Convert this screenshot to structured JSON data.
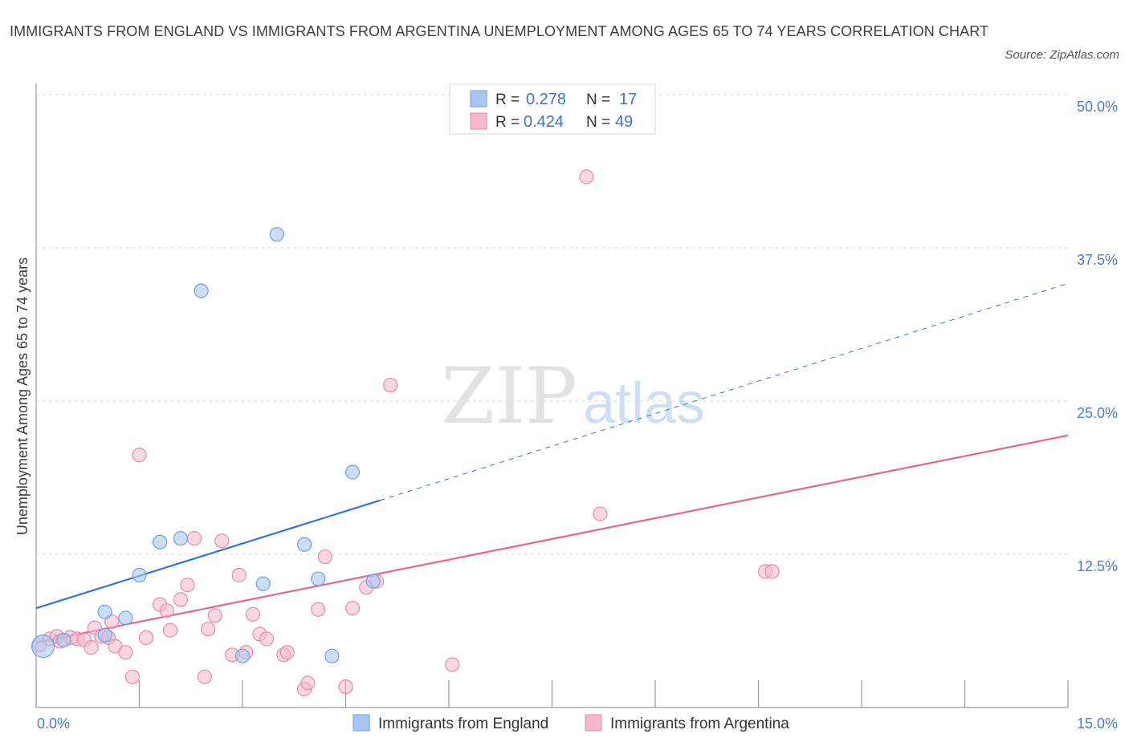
{
  "title": "IMMIGRANTS FROM ENGLAND VS IMMIGRANTS FROM ARGENTINA UNEMPLOYMENT AMONG AGES 65 TO 74 YEARS CORRELATION CHART",
  "source": "Source: ZipAtlas.com",
  "colors": {
    "england_fill": "#aac6f0",
    "england_stroke": "#6f9fdc",
    "england_line": "#3575d1",
    "argentina_fill": "#f6b8cc",
    "argentina_stroke": "#e98aa9",
    "argentina_line": "#e0668f",
    "grid": "#d9d9d9",
    "tick_label": "#4a7cc9"
  },
  "legend": {
    "rows": [
      {
        "r_label": "R =",
        "r_value": "0.278",
        "n_label": "N =",
        "n_value": "17"
      },
      {
        "r_label": "R =",
        "r_value": "0.424",
        "n_label": "N =",
        "n_value": "49"
      }
    ]
  },
  "watermark": {
    "zip": "ZIP",
    "atlas": "atlas"
  },
  "chart_data": {
    "type": "scatter",
    "title": "IMMIGRANTS FROM ENGLAND VS IMMIGRANTS FROM ARGENTINA UNEMPLOYMENT AMONG AGES 65 TO 74 YEARS CORRELATION CHART",
    "xlabel": "",
    "ylabel": "Unemployment Among Ages 65 to 74 years",
    "xlim": [
      0,
      15
    ],
    "ylim": [
      0,
      50
    ],
    "x_tick_labels": [
      "0.0%",
      "15.0%"
    ],
    "y_ticks": [
      12.5,
      25.0,
      37.5,
      50.0
    ],
    "y_tick_labels": [
      "12.5%",
      "25.0%",
      "37.5%",
      "50.0%"
    ],
    "grid": true,
    "legend_position": "top-center",
    "series": [
      {
        "name": "Immigrants from England",
        "R": 0.278,
        "N": 17,
        "points": [
          {
            "x": 0.1,
            "y": 5.0,
            "big": true
          },
          {
            "x": 0.4,
            "y": 5.5
          },
          {
            "x": 1.0,
            "y": 5.9
          },
          {
            "x": 1.0,
            "y": 7.8
          },
          {
            "x": 1.3,
            "y": 7.3
          },
          {
            "x": 1.5,
            "y": 10.8
          },
          {
            "x": 1.8,
            "y": 13.5
          },
          {
            "x": 2.1,
            "y": 13.8
          },
          {
            "x": 2.4,
            "y": 34.0
          },
          {
            "x": 3.0,
            "y": 4.2
          },
          {
            "x": 3.3,
            "y": 10.1
          },
          {
            "x": 3.5,
            "y": 38.6
          },
          {
            "x": 3.9,
            "y": 13.3
          },
          {
            "x": 4.1,
            "y": 10.5
          },
          {
            "x": 4.3,
            "y": 4.2
          },
          {
            "x": 4.6,
            "y": 19.2
          },
          {
            "x": 4.9,
            "y": 10.3
          }
        ],
        "trend": {
          "x0": 0,
          "y0": 8.1,
          "x1": 5.0,
          "y1": 16.9,
          "dash_to_x": 15,
          "dash_to_y": 34.6
        }
      },
      {
        "name": "Immigrants from Argentina",
        "R": 0.424,
        "N": 49,
        "points": [
          {
            "x": 0.05,
            "y": 5.1
          },
          {
            "x": 0.2,
            "y": 5.6
          },
          {
            "x": 0.3,
            "y": 5.8
          },
          {
            "x": 0.5,
            "y": 5.7
          },
          {
            "x": 0.6,
            "y": 5.6
          },
          {
            "x": 0.7,
            "y": 5.5
          },
          {
            "x": 0.8,
            "y": 4.9
          },
          {
            "x": 0.85,
            "y": 6.5
          },
          {
            "x": 0.95,
            "y": 5.8
          },
          {
            "x": 1.05,
            "y": 5.7
          },
          {
            "x": 1.1,
            "y": 7.0
          },
          {
            "x": 1.15,
            "y": 5.0
          },
          {
            "x": 1.3,
            "y": 4.5
          },
          {
            "x": 1.4,
            "y": 2.5
          },
          {
            "x": 1.5,
            "y": 20.6
          },
          {
            "x": 1.6,
            "y": 5.7
          },
          {
            "x": 1.8,
            "y": 8.4
          },
          {
            "x": 1.9,
            "y": 7.9
          },
          {
            "x": 1.95,
            "y": 6.3
          },
          {
            "x": 2.1,
            "y": 8.8
          },
          {
            "x": 2.2,
            "y": 10.0
          },
          {
            "x": 2.3,
            "y": 13.8
          },
          {
            "x": 2.45,
            "y": 2.5
          },
          {
            "x": 2.5,
            "y": 6.4
          },
          {
            "x": 2.6,
            "y": 7.5
          },
          {
            "x": 2.7,
            "y": 13.6
          },
          {
            "x": 2.85,
            "y": 4.3
          },
          {
            "x": 2.95,
            "y": 10.8
          },
          {
            "x": 3.05,
            "y": 4.5
          },
          {
            "x": 3.15,
            "y": 7.6
          },
          {
            "x": 3.25,
            "y": 6.0
          },
          {
            "x": 3.35,
            "y": 5.6
          },
          {
            "x": 3.6,
            "y": 4.3
          },
          {
            "x": 3.65,
            "y": 4.5
          },
          {
            "x": 3.9,
            "y": 1.5
          },
          {
            "x": 3.95,
            "y": 2.0
          },
          {
            "x": 4.1,
            "y": 8.0
          },
          {
            "x": 4.2,
            "y": 12.3
          },
          {
            "x": 4.5,
            "y": 1.7
          },
          {
            "x": 4.6,
            "y": 8.1
          },
          {
            "x": 4.8,
            "y": 9.8
          },
          {
            "x": 4.95,
            "y": 10.3
          },
          {
            "x": 5.15,
            "y": 26.3
          },
          {
            "x": 6.05,
            "y": 3.5
          },
          {
            "x": 8.0,
            "y": 43.3
          },
          {
            "x": 8.2,
            "y": 15.8
          },
          {
            "x": 10.6,
            "y": 11.1
          },
          {
            "x": 10.7,
            "y": 11.1
          },
          {
            "x": 0.35,
            "y": 5.4
          }
        ],
        "trend": {
          "x0": 0,
          "y0": 5.3,
          "x1": 15,
          "y1": 22.2
        }
      }
    ]
  }
}
